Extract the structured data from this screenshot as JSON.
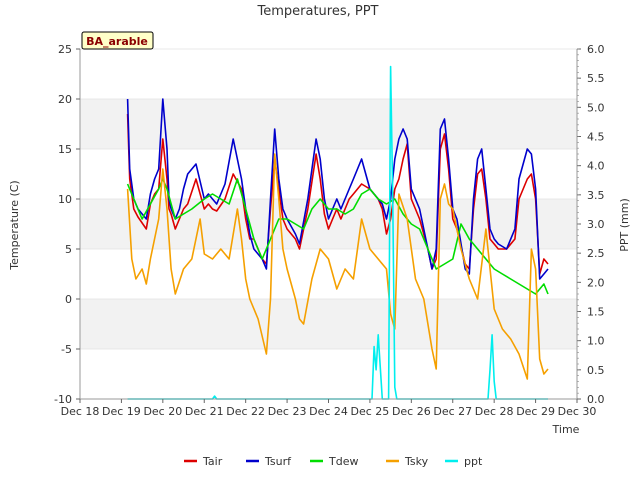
{
  "chart_data": {
    "type": "line",
    "title": "Temperatures, PPT",
    "badge": "BA_arable",
    "xlabel": "Time",
    "ylabel_left": "Temperature (C)",
    "ylabel_right": "PPT (mm)",
    "xlim": [
      18,
      30
    ],
    "ylim_left": [
      -10,
      25
    ],
    "ylim_right": [
      0,
      6
    ],
    "x_ticks": [
      18,
      19,
      20,
      21,
      22,
      23,
      24,
      25,
      26,
      27,
      28,
      29,
      30
    ],
    "x_tick_labels": [
      "Dec 18",
      "Dec 19",
      "Dec 20",
      "Dec 21",
      "Dec 22",
      "Dec 23",
      "Dec 24",
      "Dec 25",
      "Dec 26",
      "Dec 27",
      "Dec 28",
      "Dec 29",
      "Dec 30"
    ],
    "y_ticks_left": [
      -10,
      -5,
      0,
      5,
      10,
      15,
      20,
      25
    ],
    "y_ticks_right": [
      0.0,
      0.5,
      1.0,
      1.5,
      2.0,
      2.5,
      3.0,
      3.5,
      4.0,
      4.5,
      5.0,
      5.5,
      6.0
    ],
    "y_tick_labels_right": [
      "0.0",
      "0.5",
      "1.0",
      "1.5",
      "2.0",
      "2.5",
      "3.0",
      "3.5",
      "4.0",
      "4.5",
      "5.0",
      "5.5",
      "6.0"
    ],
    "grid_bands": true,
    "legend_position": "bottom",
    "series": [
      {
        "name": "Tair",
        "color": "#dd0000",
        "axis": "left",
        "x": [
          19.15,
          19.2,
          19.3,
          19.4,
          19.6,
          19.7,
          19.8,
          19.9,
          20.0,
          20.1,
          20.15,
          20.2,
          20.3,
          20.4,
          20.5,
          20.6,
          20.8,
          21.0,
          21.1,
          21.2,
          21.3,
          21.5,
          21.7,
          21.9,
          22.0,
          22.1,
          22.2,
          22.4,
          22.5,
          22.6,
          22.7,
          22.8,
          22.9,
          23.0,
          23.2,
          23.3,
          23.5,
          23.7,
          23.8,
          23.9,
          24.0,
          24.1,
          24.2,
          24.3,
          24.5,
          24.6,
          24.8,
          25.0,
          25.2,
          25.3,
          25.4,
          25.5,
          25.6,
          25.7,
          25.8,
          25.9,
          26.0,
          26.2,
          26.4,
          26.5,
          26.6,
          26.7,
          26.8,
          26.9,
          27.0,
          27.1,
          27.3,
          27.4,
          27.5,
          27.6,
          27.7,
          27.8,
          27.9,
          28.0,
          28.1,
          28.3,
          28.5,
          28.6,
          28.8,
          28.9,
          29.0,
          29.1,
          29.2,
          29.3
        ],
        "y": [
          18.5,
          12.0,
          9.0,
          8.2,
          7.0,
          9.5,
          10.5,
          11.0,
          16.0,
          12.0,
          9.0,
          8.5,
          7.0,
          8.0,
          9.0,
          9.5,
          12.0,
          9.0,
          9.5,
          9.0,
          8.8,
          10.0,
          12.5,
          11.0,
          8.0,
          6.0,
          6.0,
          4.0,
          3.5,
          9.0,
          14.0,
          11.0,
          8.0,
          7.0,
          6.0,
          5.0,
          9.0,
          14.5,
          12.0,
          8.5,
          7.0,
          8.0,
          9.0,
          8.0,
          10.0,
          10.5,
          11.5,
          11.0,
          10.0,
          9.0,
          6.5,
          8.0,
          11.0,
          12.0,
          14.0,
          15.5,
          10.0,
          8.0,
          5.0,
          3.0,
          4.0,
          15.0,
          16.5,
          13.0,
          8.0,
          7.0,
          3.5,
          3.0,
          9.0,
          12.5,
          13.0,
          10.0,
          6.0,
          5.5,
          5.0,
          5.0,
          6.0,
          10.0,
          12.0,
          12.5,
          10.0,
          2.5,
          4.0,
          3.5
        ]
      },
      {
        "name": "Tsurf",
        "color": "#0000cc",
        "axis": "left",
        "x": [
          19.15,
          19.2,
          19.3,
          19.4,
          19.6,
          19.7,
          19.8,
          19.9,
          20.0,
          20.1,
          20.15,
          20.2,
          20.3,
          20.4,
          20.5,
          20.6,
          20.8,
          21.0,
          21.1,
          21.2,
          21.3,
          21.5,
          21.7,
          21.9,
          22.0,
          22.1,
          22.2,
          22.4,
          22.5,
          22.6,
          22.7,
          22.8,
          22.9,
          23.0,
          23.2,
          23.3,
          23.5,
          23.7,
          23.8,
          23.9,
          24.0,
          24.1,
          24.2,
          24.3,
          24.5,
          24.6,
          24.8,
          25.0,
          25.2,
          25.3,
          25.4,
          25.5,
          25.6,
          25.7,
          25.8,
          25.9,
          26.0,
          26.2,
          26.4,
          26.5,
          26.6,
          26.7,
          26.8,
          26.9,
          27.0,
          27.1,
          27.3,
          27.4,
          27.5,
          27.6,
          27.7,
          27.8,
          27.9,
          28.0,
          28.1,
          28.3,
          28.5,
          28.6,
          28.8,
          28.9,
          29.0,
          29.1,
          29.2,
          29.3
        ],
        "y": [
          20.0,
          13.0,
          10.0,
          9.0,
          8.0,
          10.5,
          12.0,
          13.0,
          20.0,
          15.0,
          10.0,
          9.0,
          8.0,
          9.0,
          11.0,
          12.5,
          13.5,
          10.0,
          10.5,
          10.0,
          9.5,
          11.5,
          16.0,
          12.0,
          9.0,
          6.5,
          5.0,
          4.0,
          3.0,
          10.0,
          17.0,
          12.0,
          9.0,
          8.0,
          6.5,
          5.5,
          10.0,
          16.0,
          14.0,
          10.0,
          8.0,
          9.0,
          10.0,
          9.0,
          11.0,
          12.0,
          14.0,
          11.0,
          10.0,
          9.5,
          8.0,
          10.0,
          14.0,
          16.0,
          17.0,
          16.0,
          11.0,
          9.0,
          5.0,
          3.0,
          5.0,
          17.0,
          18.0,
          14.0,
          9.0,
          8.0,
          3.0,
          2.5,
          10.0,
          14.0,
          15.0,
          11.0,
          7.0,
          6.0,
          5.5,
          5.0,
          7.0,
          12.0,
          15.0,
          14.5,
          11.0,
          2.0,
          2.5,
          3.0
        ]
      },
      {
        "name": "Tdew",
        "color": "#00dd00",
        "axis": "left",
        "x": [
          19.15,
          19.3,
          19.5,
          19.7,
          19.9,
          20.0,
          20.1,
          20.3,
          20.5,
          20.7,
          21.0,
          21.2,
          21.4,
          21.6,
          21.8,
          22.0,
          22.2,
          22.4,
          22.6,
          22.8,
          23.0,
          23.2,
          23.4,
          23.6,
          23.8,
          24.0,
          24.2,
          24.4,
          24.6,
          24.8,
          25.0,
          25.2,
          25.4,
          25.6,
          25.8,
          26.0,
          26.2,
          26.4,
          26.6,
          26.8,
          27.0,
          27.2,
          27.4,
          27.6,
          27.8,
          28.0,
          28.2,
          28.4,
          28.6,
          28.8,
          29.0,
          29.2,
          29.3
        ],
        "y": [
          11.5,
          10.0,
          8.0,
          9.5,
          11.0,
          12.0,
          11.0,
          8.0,
          8.5,
          9.0,
          10.0,
          10.5,
          10.0,
          9.5,
          12.0,
          9.0,
          6.0,
          4.0,
          6.0,
          8.0,
          8.0,
          7.5,
          7.0,
          9.0,
          10.0,
          9.0,
          9.0,
          8.5,
          9.0,
          10.5,
          11.0,
          10.0,
          9.5,
          10.0,
          8.5,
          7.5,
          7.0,
          5.0,
          3.0,
          3.5,
          4.0,
          7.5,
          6.0,
          5.0,
          4.0,
          3.0,
          2.5,
          2.0,
          1.5,
          1.0,
          0.5,
          1.5,
          0.5
        ]
      },
      {
        "name": "Tsky",
        "color": "#f5a000",
        "axis": "left",
        "x": [
          19.15,
          19.25,
          19.35,
          19.5,
          19.6,
          19.7,
          19.9,
          20.0,
          20.1,
          20.2,
          20.3,
          20.5,
          20.7,
          20.9,
          21.0,
          21.2,
          21.4,
          21.6,
          21.8,
          21.9,
          22.0,
          22.1,
          22.3,
          22.5,
          22.6,
          22.7,
          22.8,
          22.9,
          23.0,
          23.2,
          23.3,
          23.4,
          23.6,
          23.8,
          24.0,
          24.2,
          24.4,
          24.6,
          24.8,
          25.0,
          25.2,
          25.4,
          25.5,
          25.6,
          25.7,
          25.9,
          26.1,
          26.3,
          26.5,
          26.6,
          26.7,
          26.8,
          26.9,
          27.0,
          27.2,
          27.4,
          27.6,
          27.8,
          28.0,
          28.2,
          28.4,
          28.6,
          28.8,
          28.9,
          29.0,
          29.1,
          29.2,
          29.3
        ],
        "y": [
          11.0,
          4.0,
          2.0,
          3.0,
          1.5,
          4.0,
          8.0,
          13.0,
          9.0,
          3.0,
          0.5,
          3.0,
          4.0,
          8.0,
          4.5,
          4.0,
          5.0,
          4.0,
          9.0,
          6.0,
          2.0,
          0.0,
          -2.0,
          -5.5,
          0.0,
          14.5,
          10.0,
          5.0,
          3.0,
          0.0,
          -2.0,
          -2.5,
          2.0,
          5.0,
          4.0,
          1.0,
          3.0,
          2.0,
          8.0,
          5.0,
          4.0,
          3.0,
          -1.5,
          -3.0,
          10.5,
          8.0,
          2.0,
          0.0,
          -5.0,
          -7.0,
          10.0,
          11.5,
          9.5,
          9.0,
          5.0,
          2.0,
          0.0,
          7.0,
          -1.0,
          -3.0,
          -4.0,
          -5.5,
          -8.0,
          5.0,
          3.0,
          -6.0,
          -7.5,
          -7.0
        ]
      },
      {
        "name": "ppt",
        "color": "#00eeee",
        "axis": "right",
        "x": [
          19.15,
          21.2,
          21.25,
          21.3,
          25.05,
          25.1,
          25.15,
          25.2,
          25.3,
          25.45,
          25.5,
          25.55,
          25.6,
          25.65,
          25.7,
          27.85,
          27.9,
          27.95,
          28.0,
          28.05,
          29.3
        ],
        "y": [
          0.0,
          0.0,
          0.05,
          0.0,
          0.0,
          0.9,
          0.5,
          1.1,
          0.0,
          0.0,
          5.7,
          3.5,
          0.2,
          0.0,
          0.0,
          0.0,
          0.5,
          1.1,
          0.3,
          0.0,
          0.0
        ]
      }
    ]
  }
}
